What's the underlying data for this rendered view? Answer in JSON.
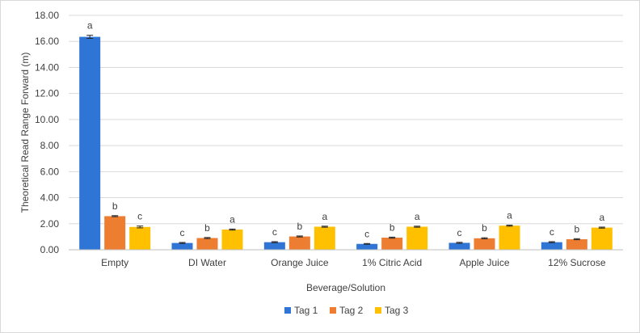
{
  "chart_data": {
    "type": "bar",
    "ylabel": "Theoretical Read Range Forward (m)",
    "xlabel": "Beverage/Solution",
    "ylim": [
      0,
      18
    ],
    "yticks": [
      "0.00",
      "2.00",
      "4.00",
      "6.00",
      "8.00",
      "10.00",
      "12.00",
      "14.00",
      "16.00",
      "18.00"
    ],
    "categories": [
      "Empty",
      "DI Water",
      "Orange Juice",
      "1% Citric Acid",
      "Apple Juice",
      "12% Sucrose"
    ],
    "grid": true,
    "legend_position": "bottom",
    "error_bars": true,
    "series": [
      {
        "name": "Tag 1",
        "color": "#2e75d6",
        "values": [
          16.35,
          0.52,
          0.58,
          0.45,
          0.53,
          0.58
        ],
        "errors": [
          0.12,
          0.04,
          0.04,
          0.03,
          0.04,
          0.04
        ],
        "sig": [
          "a",
          "c",
          "c",
          "c",
          "c",
          "c"
        ]
      },
      {
        "name": "Tag 2",
        "color": "#ed7d31",
        "values": [
          2.58,
          0.9,
          1.02,
          0.93,
          0.88,
          0.81
        ],
        "errors": [
          0.04,
          0.04,
          0.04,
          0.04,
          0.04,
          0.04
        ],
        "sig": [
          "b",
          "b",
          "b",
          "b",
          "b",
          "b"
        ]
      },
      {
        "name": "Tag 3",
        "color": "#ffc000",
        "values": [
          1.75,
          1.55,
          1.77,
          1.77,
          1.85,
          1.7
        ],
        "errors": [
          0.07,
          0.04,
          0.04,
          0.04,
          0.04,
          0.04
        ],
        "sig": [
          "c",
          "a",
          "a",
          "a",
          "a",
          "a"
        ]
      }
    ]
  }
}
